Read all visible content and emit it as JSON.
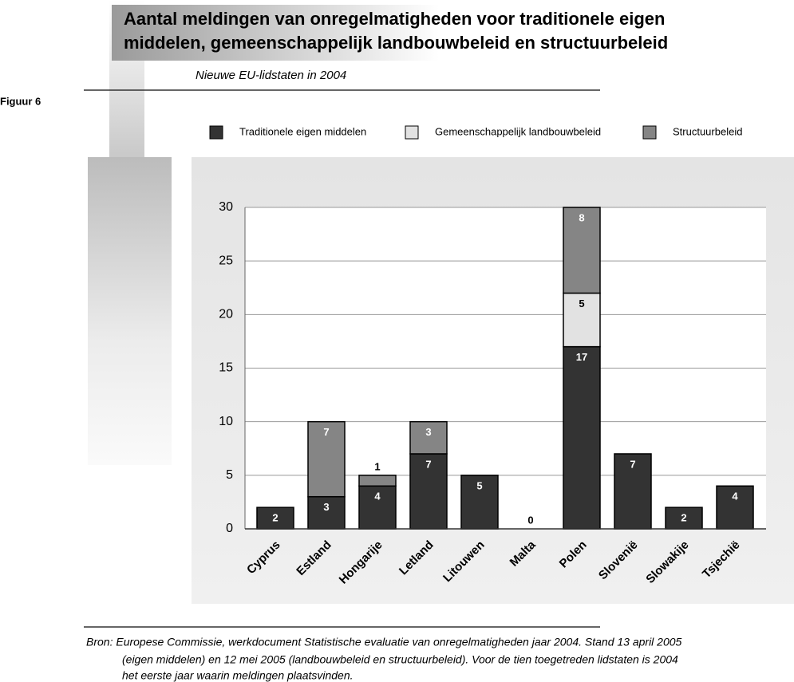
{
  "figure_label": "Figuur 6",
  "chart_data": {
    "type": "stacked-bar",
    "title": [
      "Aantal meldingen van onregelmatigheden voor traditionele eigen",
      "middelen, gemeenschappelijk landbouwbeleid en structuurbeleid"
    ],
    "subtitle": "Nieuwe EU-lidstaten in 2004",
    "categories": [
      "Cyprus",
      "Estland",
      "Hongarije",
      "Letland",
      "Litouwen",
      "Malta",
      "Polen",
      "Slovenië",
      "Slowakije",
      "Tsjechië"
    ],
    "series": [
      {
        "name": "Traditionele eigen middelen",
        "color": "#333333",
        "values": [
          2,
          3,
          4,
          7,
          5,
          0,
          17,
          7,
          2,
          4
        ]
      },
      {
        "name": "Gemeenschappelijk landbouwbeleid",
        "color": "#e2e2e2",
        "values": [
          0,
          0,
          0,
          0,
          0,
          0,
          5,
          0,
          0,
          0
        ]
      },
      {
        "name": "Structuurbeleid",
        "color": "#858585",
        "values": [
          0,
          7,
          1,
          3,
          0,
          0,
          8,
          0,
          0,
          0
        ]
      }
    ],
    "ylim": [
      0,
      30
    ],
    "yticks": [
      0,
      5,
      10,
      15,
      20,
      25,
      30
    ],
    "grid": true,
    "legend": "top"
  },
  "source": [
    "Bron: Europese Commissie, werkdocument Statistische evaluatie van onregelmatigheden jaar 2004. Stand 13 april 2005",
    "(eigen middelen) en 12 mei 2005 (landbouwbeleid en structuurbeleid). Voor de tien toegetreden lidstaten is 2004",
    "het eerste jaar waarin meldingen plaatsvinden."
  ]
}
